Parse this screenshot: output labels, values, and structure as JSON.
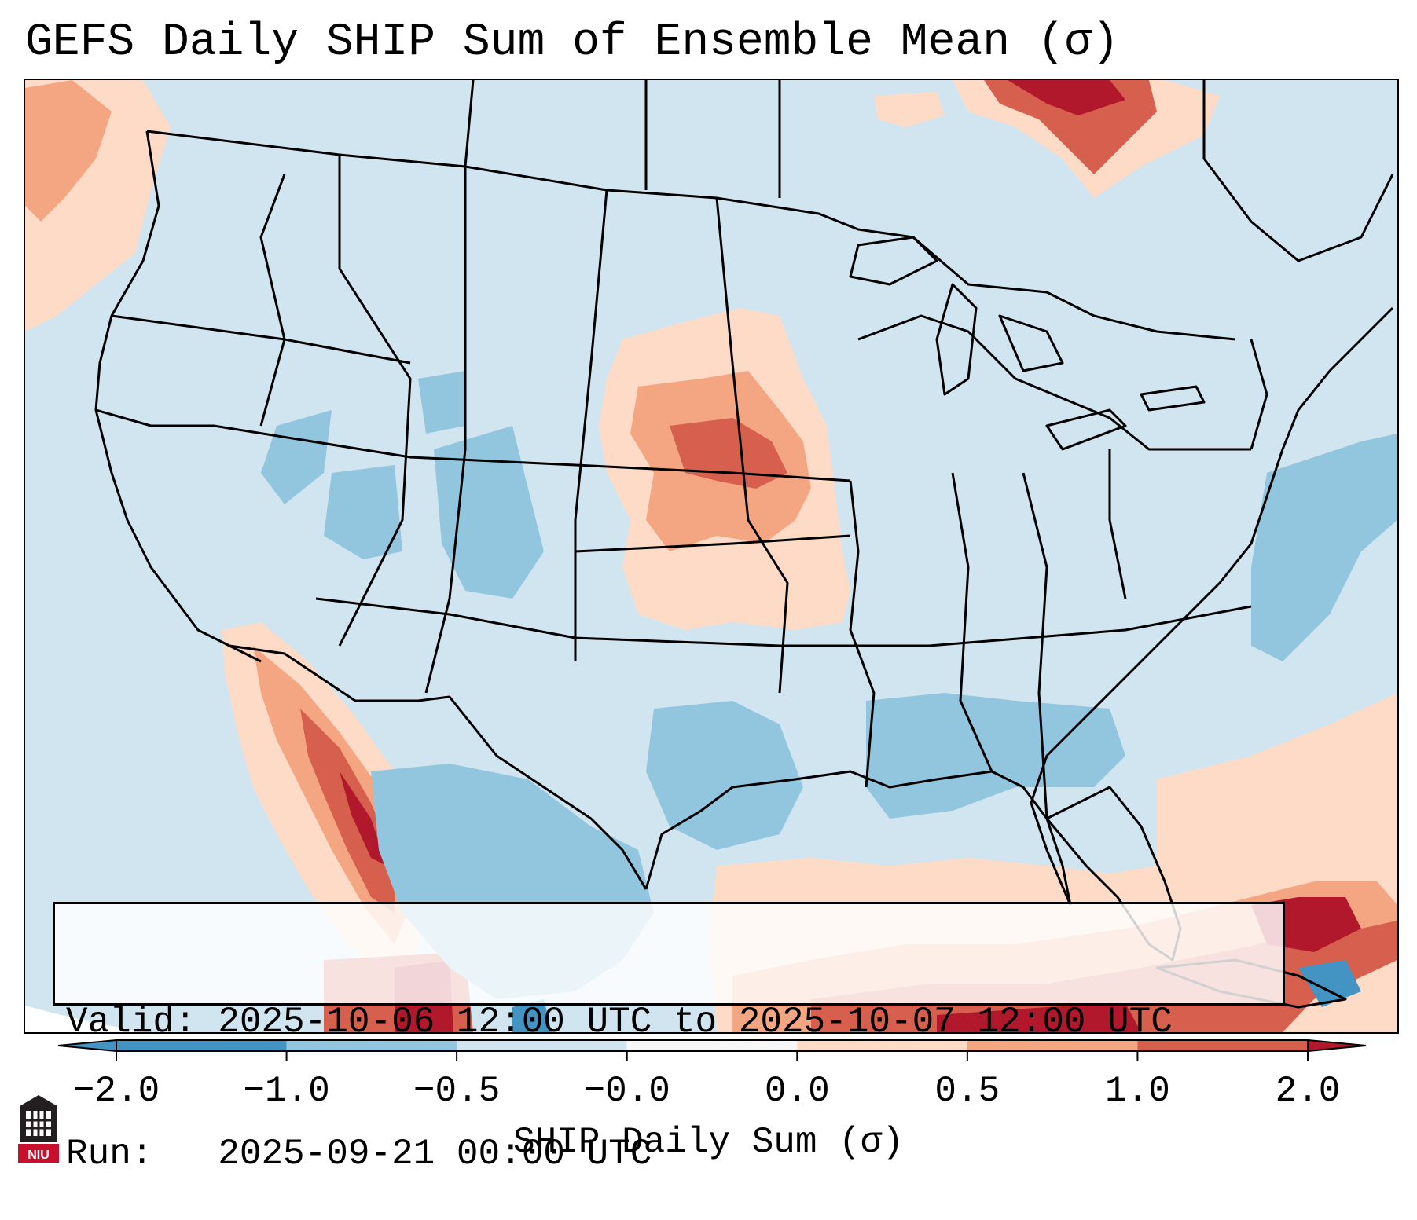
{
  "title": "GEFS Daily SHIP Sum of Ensemble Mean (σ)",
  "info": {
    "valid": "Valid: 2025-10-06 12:00 UTC to 2025-10-07 12:00 UTC",
    "run": "Run:   2025-09-21 00:00 UTC"
  },
  "colorbar": {
    "label": "SHIP Daily Sum (σ)",
    "ticks": [
      "−2.0",
      "−1.0",
      "−0.5",
      "−0.0",
      "0.0",
      "0.5",
      "1.0",
      "2.0"
    ],
    "bins": [
      {
        "range": "< -2.0",
        "color": "#4393c3"
      },
      {
        "range": "-2.0 to -1.0",
        "color": "#4393c3"
      },
      {
        "range": "-1.0 to -0.5",
        "color": "#92c5de"
      },
      {
        "range": "-0.5 to -0.0",
        "color": "#d1e5f0"
      },
      {
        "range": "-0.0 to 0.0",
        "color": "#f7f7f7"
      },
      {
        "range": "0.0 to 0.5",
        "color": "#fddbc7"
      },
      {
        "range": "0.5 to 1.0",
        "color": "#f4a582"
      },
      {
        "range": "1.0 to 2.0",
        "color": "#d6604d"
      },
      {
        "range": "> 2.0",
        "color": "#b2182b"
      }
    ]
  },
  "map": {
    "region": "Contiguous United States",
    "background_color": "#d1e5f0",
    "anomaly_regions": [
      {
        "name": "Central Plains (Nebraska-Kansas-Iowa)",
        "category": "0.5 to 1.0"
      },
      {
        "name": "Gulf of California / Sonora",
        "category": "1.0 to 2.0"
      },
      {
        "name": "Caribbean / Cuba",
        "category": "1.0 to 2.0"
      },
      {
        "name": "Hudson Bay region",
        "category": "> 2.0"
      },
      {
        "name": "Colorado Rockies",
        "category": "-1.0 to -0.5"
      },
      {
        "name": "Western Atlantic",
        "category": "-1.0 to -0.5"
      },
      {
        "name": "Southeast US / Lower Mississippi",
        "category": "-1.0 to -0.5"
      },
      {
        "name": "Northern Mexico",
        "category": "-1.0 to -0.5"
      }
    ]
  },
  "logo": {
    "text": "NIU"
  }
}
